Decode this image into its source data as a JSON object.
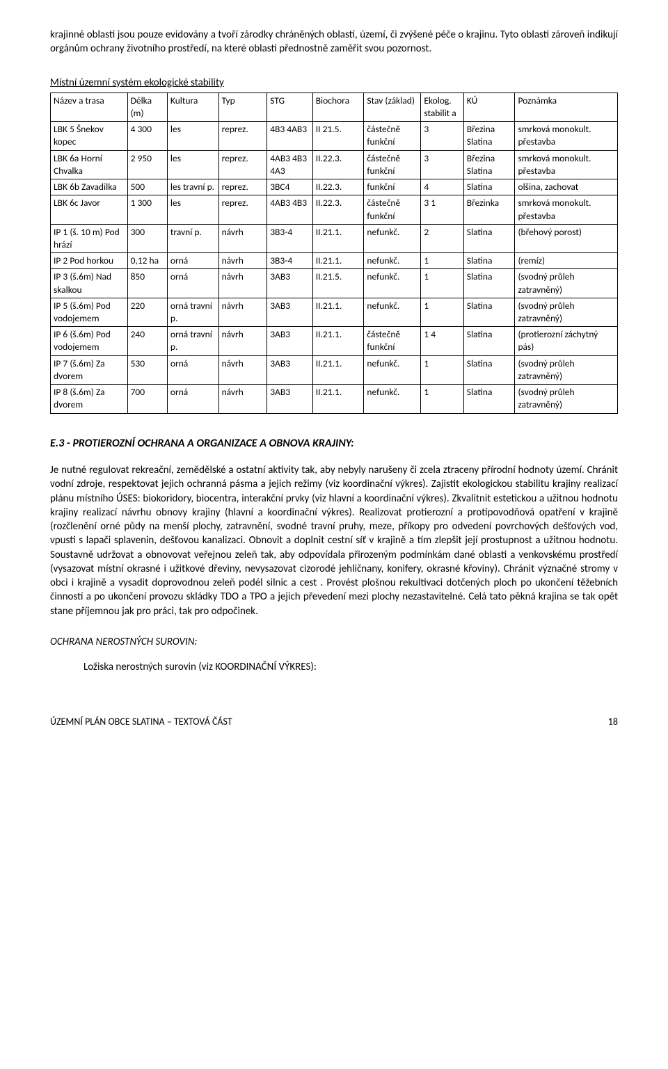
{
  "intro": "krajinné oblasti jsou pouze evidovány a tvoří zárodky chráněných oblastí, území, či zvýšené péče o krajinu. Tyto oblasti zároveň indikují orgánům ochrany životního prostředí, na které oblasti přednostně zaměřit svou pozornost.",
  "tableTitle": "Místní územní systém ekologické stability",
  "headers": {
    "nazev": "Název a trasa",
    "delka": "Délka (m)",
    "kultura": "Kultura",
    "typ": "Typ",
    "stg": "STG",
    "biochora": "Biochora",
    "stav": "Stav (základ)",
    "ekolog": "Ekolog. stabilit a",
    "ku": "KÚ",
    "poznamka": "Poznámka"
  },
  "rows": [
    {
      "nazev": "LBK 5 Šnekov kopec",
      "delka": "4 300",
      "kultura": "les",
      "typ": "reprez.",
      "stg": "4B3 4AB3",
      "biochora": "II 21.5.",
      "stav": "částečně funkční",
      "ekolog": "3",
      "ku": "Březina Slatina",
      "poznamka": "smrková monokult. přestavba"
    },
    {
      "nazev": "LBK 6a Horní Chvalka",
      "delka": "2 950",
      "kultura": "les",
      "typ": "reprez.",
      "stg": "4AB3 4B3 4A3",
      "biochora": "II.22.3.",
      "stav": "částečně funkční",
      "ekolog": "3",
      "ku": "Březina Slatina",
      "poznamka": "smrková monokult. přestavba"
    },
    {
      "nazev": "LBK 6b Zavadilka",
      "delka": "500",
      "kultura": "les travní p.",
      "typ": "reprez.",
      "stg": "3BC4",
      "biochora": "II.22.3.",
      "stav": "funkční",
      "ekolog": "4",
      "ku": "Slatina",
      "poznamka": "olšina, zachovat"
    },
    {
      "nazev": "LBK 6c Javor",
      "delka": "1 300",
      "kultura": "les",
      "typ": "reprez.",
      "stg": "4AB3 4B3",
      "biochora": "II.22.3.",
      "stav": "částečně funkční",
      "ekolog": "3 1",
      "ku": "Březinka",
      "poznamka": "smrková monokult. přestavba"
    },
    {
      "nazev": "IP 1 (š. 10 m) Pod hrází",
      "delka": "300",
      "kultura": "travní p.",
      "typ": "návrh",
      "stg": "3B3-4",
      "biochora": "II.21.1.",
      "stav": "nefunkč.",
      "ekolog": "2",
      "ku": "Slatina",
      "poznamka": "(břehový porost)"
    },
    {
      "nazev": "IP 2 Pod horkou",
      "delka": "0,12 ha",
      "kultura": "orná",
      "typ": "návrh",
      "stg": "3B3-4",
      "biochora": "II.21.1.",
      "stav": "nefunkč.",
      "ekolog": "1",
      "ku": "Slatina",
      "poznamka": "(remíz)"
    },
    {
      "nazev": "IP 3 (š.6m) Nad skalkou",
      "delka": "850",
      "kultura": "orná",
      "typ": "návrh",
      "stg": "3AB3",
      "biochora": "II.21.5.",
      "stav": "nefunkč.",
      "ekolog": "1",
      "ku": "Slatina",
      "poznamka": "(svodný průleh zatravněný)"
    },
    {
      "nazev": "IP 5 (š.6m) Pod vodojemem",
      "delka": "220",
      "kultura": "orná travní p.",
      "typ": "návrh",
      "stg": "3AB3",
      "biochora": "II.21.1.",
      "stav": "nefunkč.",
      "ekolog": "1",
      "ku": "Slatina",
      "poznamka": "(svodný průleh zatravněný)"
    },
    {
      "nazev": "IP 6 (š.6m) Pod vodojemem",
      "delka": "240",
      "kultura": "orná travní p.",
      "typ": "návrh",
      "stg": "3AB3",
      "biochora": "II.21.1.",
      "stav": "částečně funkční",
      "ekolog": "1 4",
      "ku": "Slatina",
      "poznamka": "(protierozní záchytný pás)"
    },
    {
      "nazev": "IP 7 (š.6m) Za dvorem",
      "delka": "530",
      "kultura": "orná",
      "typ": "návrh",
      "stg": "3AB3",
      "biochora": "II.21.1.",
      "stav": "nefunkč.",
      "ekolog": "1",
      "ku": "Slatina",
      "poznamka": "(svodný průleh zatravněný)"
    },
    {
      "nazev": "IP 8 (š.6m) Za dvorem",
      "delka": "700",
      "kultura": "orná",
      "typ": "návrh",
      "stg": "3AB3",
      "biochora": "II.21.1.",
      "stav": "nefunkč.",
      "ekolog": "1",
      "ku": "Slatina",
      "poznamka": "(svodný průleh zatravněný)"
    }
  ],
  "sectionHeading": "E.3 - PROTIEROZNÍ OCHRANA A ORGANIZACE A OBNOVA KRAJINY:",
  "bodyPara": "Je nutné regulovat rekreační, zemědělské a ostatní aktivity tak, aby nebyly narušeny či zcela ztraceny přírodní hodnoty území. Chránit vodní zdroje, respektovat jejich ochranná pásma a jejich režimy (viz koordinační výkres). Zajistit ekologickou stabilitu krajiny realizací plánu místního ÚSES: biokoridory, biocentra, interakční prvky (viz hlavní a koordinační výkres). Zkvalitnit estetickou a užitnou hodnotu krajiny realizací návrhu obnovy krajiny (hlavní a koordinační výkres). Realizovat protierozní a protipovodňová opatření v krajině (rozčlenění orné půdy na menší plochy, zatravnění, svodné travní pruhy, meze, příkopy pro odvedení povrchových dešťových vod, vpusti s lapači splavenin, dešťovou kanalizaci. Obnovit a doplnit cestní síť v krajině a tím zlepšit její prostupnost a užitnou hodnotu. Soustavně udržovat a obnovovat veřejnou zeleň tak, aby odpovídala přirozeným podmínkám dané oblasti a venkovskému prostředí (vysazovat místní okrasné i užitkové dřeviny, nevysazovat cizorodé jehličnany, konifery, okrasné křoviny). Chránit význačné stromy v obci i krajině a vysadit doprovodnou zeleň podél silnic a cest . Provést plošnou rekultivaci dotčených ploch po ukončení těžebních činností a po ukončení provozu skládky TDO a TPO a jejich převedení mezi plochy nezastavitelné. Celá tato pěkná krajina se tak opět stane příjemnou jak pro práci, tak pro odpočinek.",
  "subHeading": "OCHRANA NEROSTNÝCH SUROVIN:",
  "indentPara": "Ložiska nerostných surovin (viz KOORDINAČNÍ VÝKRES):",
  "footerLeft": "ÚZEMNÍ PLÁN OBCE SLATINA – TEXTOVÁ ČÁST",
  "footerRight": "18"
}
